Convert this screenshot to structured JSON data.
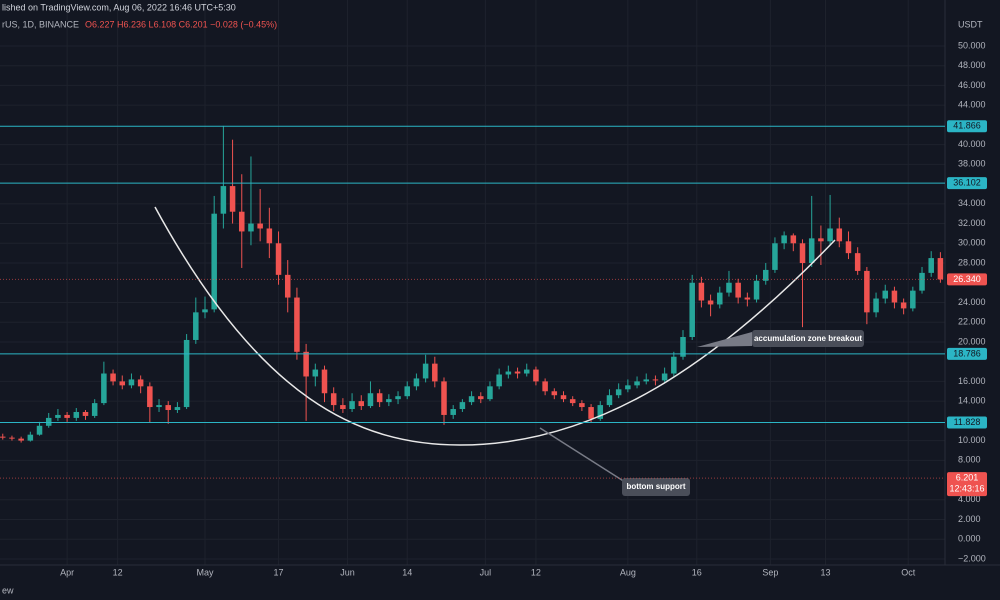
{
  "header": {
    "published": "lished on TradingView.com, Aug 06, 2022 16:46 UTC+5:30",
    "symbol": "rUS, 1D, BINANCE",
    "ohlc": "O6.227 H6.236 L6.108 C6.201 −0.028 (−0.45%)",
    "footer": "ew"
  },
  "chart_data": {
    "type": "candlestick",
    "currency": "USDT",
    "up_color": "#26a69a",
    "down_color": "#ef5350",
    "grid": true,
    "xlim": [
      -14.6,
      191
    ],
    "ylim": [
      -2.61,
      54.66
    ],
    "xticks": [
      {
        "value": 0,
        "label": "Apr"
      },
      {
        "value": 11,
        "label": "12"
      },
      {
        "value": 30,
        "label": "May"
      },
      {
        "value": 46,
        "label": "17"
      },
      {
        "value": 61,
        "label": "Jun"
      },
      {
        "value": 74,
        "label": "14"
      },
      {
        "value": 91,
        "label": "Jul"
      },
      {
        "value": 102,
        "label": "12"
      },
      {
        "value": 122,
        "label": "Aug"
      },
      {
        "value": 137,
        "label": "16"
      },
      {
        "value": 153,
        "label": "Sep"
      },
      {
        "value": 165,
        "label": "13"
      },
      {
        "value": 183,
        "label": "Oct"
      }
    ],
    "yticks": [
      {
        "value": 50,
        "label": "50.000"
      },
      {
        "value": 48,
        "label": "48.000"
      },
      {
        "value": 46,
        "label": "46.000"
      },
      {
        "value": 44,
        "label": "44.000"
      },
      {
        "value": 40,
        "label": "40.000"
      },
      {
        "value": 38,
        "label": "38.000"
      },
      {
        "value": 34,
        "label": "34.000"
      },
      {
        "value": 32,
        "label": "32.000"
      },
      {
        "value": 30,
        "label": "30.000"
      },
      {
        "value": 28,
        "label": "28.000"
      },
      {
        "value": 24,
        "label": "24.000"
      },
      {
        "value": 22,
        "label": "22.000"
      },
      {
        "value": 20,
        "label": "20.000"
      },
      {
        "value": 16,
        "label": "16.000"
      },
      {
        "value": 14,
        "label": "14.000"
      },
      {
        "value": 10,
        "label": "10.000"
      },
      {
        "value": 8,
        "label": "8.000"
      },
      {
        "value": 4,
        "label": "4.000"
      },
      {
        "value": 2,
        "label": "2.000"
      },
      {
        "value": 0,
        "label": "0.000"
      },
      {
        "value": -2,
        "label": "−2.000"
      }
    ],
    "levels": [
      {
        "value": 41.866,
        "label": "41.866"
      },
      {
        "value": 36.102,
        "label": "36.102"
      },
      {
        "value": 18.786,
        "label": "18.786"
      },
      {
        "value": 11.828,
        "label": "11.828"
      }
    ],
    "last_close": {
      "value": 26.34,
      "label": "26.340"
    },
    "last_price": {
      "value": 6.201,
      "label": "6.201",
      "countdown": "12:43:16"
    },
    "annotations": [
      "accumulation zone breakout",
      "bottom support"
    ],
    "x": [
      -14,
      -12,
      -10,
      -8,
      -6,
      -4,
      -2,
      0,
      2,
      4,
      6,
      8,
      10,
      12,
      14,
      16,
      18,
      20,
      22,
      24,
      26,
      28,
      30,
      32,
      34,
      36,
      38,
      40,
      42,
      44,
      46,
      48,
      50,
      52,
      54,
      56,
      58,
      60,
      62,
      64,
      66,
      68,
      70,
      72,
      74,
      76,
      78,
      80,
      82,
      84,
      86,
      88,
      90,
      92,
      94,
      96,
      98,
      100,
      102,
      104,
      106,
      108,
      110,
      112,
      114,
      116,
      118,
      120,
      122,
      124,
      126,
      128,
      130,
      132,
      134,
      136,
      138,
      140,
      142,
      144,
      146,
      148,
      150,
      152,
      154,
      156,
      158,
      160,
      162,
      164,
      166,
      168,
      170,
      172,
      174,
      176,
      178,
      180,
      182,
      184,
      186,
      188,
      190
    ],
    "ohlc": [
      [
        10.4,
        10.7,
        10.1,
        10.3
      ],
      [
        10.3,
        10.5,
        10.0,
        10.2
      ],
      [
        10.2,
        10.4,
        9.8,
        10.0
      ],
      [
        10.0,
        10.9,
        9.9,
        10.6
      ],
      [
        10.6,
        11.9,
        10.5,
        11.5
      ],
      [
        11.5,
        12.8,
        11.3,
        12.3
      ],
      [
        12.3,
        13.2,
        12.0,
        12.6
      ],
      [
        12.6,
        12.9,
        11.9,
        12.3
      ],
      [
        12.3,
        13.3,
        12.0,
        12.9
      ],
      [
        12.9,
        13.1,
        12.1,
        12.5
      ],
      [
        12.5,
        14.2,
        12.3,
        13.8
      ],
      [
        13.8,
        18.0,
        13.6,
        16.8
      ],
      [
        16.8,
        17.2,
        15.6,
        16.0
      ],
      [
        16.0,
        16.6,
        15.2,
        15.6
      ],
      [
        15.6,
        16.8,
        15.3,
        16.2
      ],
      [
        16.2,
        16.6,
        14.8,
        15.5
      ],
      [
        15.5,
        15.9,
        11.8,
        13.4
      ],
      [
        13.4,
        14.2,
        12.9,
        13.6
      ],
      [
        13.6,
        14.0,
        11.7,
        13.1
      ],
      [
        13.1,
        13.9,
        12.8,
        13.4
      ],
      [
        13.4,
        20.8,
        13.2,
        20.2
      ],
      [
        20.2,
        24.5,
        19.8,
        23.0
      ],
      [
        23.0,
        24.6,
        22.4,
        23.3
      ],
      [
        23.3,
        34.8,
        23.0,
        33.0
      ],
      [
        33.0,
        41.9,
        31.5,
        35.8
      ],
      [
        35.8,
        40.5,
        32.0,
        33.2
      ],
      [
        33.2,
        37.0,
        27.5,
        31.2
      ],
      [
        31.2,
        38.8,
        29.8,
        32.0
      ],
      [
        32.0,
        35.5,
        30.2,
        31.5
      ],
      [
        31.5,
        33.6,
        28.5,
        30.0
      ],
      [
        30.0,
        31.2,
        25.8,
        26.8
      ],
      [
        26.8,
        28.3,
        23.0,
        24.5
      ],
      [
        24.5,
        25.5,
        18.2,
        19.0
      ],
      [
        19.0,
        19.8,
        12.0,
        16.5
      ],
      [
        16.5,
        17.8,
        15.5,
        17.2
      ],
      [
        17.2,
        17.6,
        13.9,
        14.8
      ],
      [
        14.8,
        15.4,
        13.0,
        13.6
      ],
      [
        13.6,
        14.3,
        12.8,
        13.2
      ],
      [
        13.2,
        14.8,
        12.9,
        14.0
      ],
      [
        14.0,
        14.6,
        13.1,
        13.5
      ],
      [
        13.5,
        16.0,
        13.3,
        14.8
      ],
      [
        14.8,
        15.2,
        13.4,
        13.9
      ],
      [
        13.9,
        14.7,
        13.5,
        14.2
      ],
      [
        14.2,
        15.0,
        13.7,
        14.5
      ],
      [
        14.5,
        16.0,
        14.2,
        15.5
      ],
      [
        15.5,
        16.8,
        15.1,
        16.3
      ],
      [
        16.3,
        18.7,
        15.9,
        17.8
      ],
      [
        17.8,
        18.5,
        15.4,
        16.0
      ],
      [
        16.0,
        16.4,
        11.6,
        12.6
      ],
      [
        12.6,
        13.6,
        12.2,
        13.2
      ],
      [
        13.2,
        14.2,
        12.9,
        13.9
      ],
      [
        13.9,
        15.0,
        13.6,
        14.5
      ],
      [
        14.5,
        14.9,
        13.8,
        14.2
      ],
      [
        14.2,
        16.0,
        14.0,
        15.5
      ],
      [
        15.5,
        17.3,
        15.2,
        16.7
      ],
      [
        16.7,
        17.6,
        16.3,
        17.0
      ],
      [
        17.0,
        17.4,
        16.3,
        16.8
      ],
      [
        16.8,
        17.8,
        16.5,
        17.2
      ],
      [
        17.2,
        17.5,
        15.6,
        16.0
      ],
      [
        16.0,
        16.3,
        14.6,
        15.0
      ],
      [
        15.0,
        15.3,
        14.2,
        14.6
      ],
      [
        14.6,
        15.0,
        13.9,
        14.2
      ],
      [
        14.2,
        14.5,
        13.5,
        13.8
      ],
      [
        13.8,
        14.1,
        13.0,
        13.4
      ],
      [
        13.4,
        13.7,
        11.8,
        12.2
      ],
      [
        12.2,
        14.0,
        12.0,
        13.6
      ],
      [
        13.6,
        15.2,
        13.4,
        14.6
      ],
      [
        14.6,
        15.8,
        14.3,
        15.2
      ],
      [
        15.2,
        16.2,
        14.9,
        15.6
      ],
      [
        15.6,
        16.5,
        15.3,
        16.0
      ],
      [
        16.0,
        16.8,
        15.7,
        16.2
      ],
      [
        16.2,
        16.6,
        15.6,
        16.1
      ],
      [
        16.1,
        17.4,
        15.9,
        16.8
      ],
      [
        16.8,
        19.0,
        16.5,
        18.5
      ],
      [
        18.5,
        21.2,
        18.2,
        20.5
      ],
      [
        20.5,
        26.8,
        20.2,
        26.0
      ],
      [
        26.0,
        26.6,
        23.5,
        24.2
      ],
      [
        24.2,
        24.8,
        22.6,
        23.8
      ],
      [
        23.8,
        25.6,
        23.4,
        25.0
      ],
      [
        25.0,
        27.2,
        24.6,
        26.0
      ],
      [
        26.0,
        26.4,
        23.9,
        24.5
      ],
      [
        24.5,
        25.0,
        23.6,
        24.3
      ],
      [
        24.3,
        26.8,
        24.0,
        26.2
      ],
      [
        26.2,
        28.0,
        25.8,
        27.3
      ],
      [
        27.3,
        30.6,
        27.0,
        30.0
      ],
      [
        30.0,
        31.2,
        29.4,
        30.8
      ],
      [
        30.8,
        31.0,
        29.2,
        30.0
      ],
      [
        30.0,
        30.4,
        21.5,
        28.0
      ],
      [
        28.0,
        34.8,
        27.6,
        30.5
      ],
      [
        30.5,
        31.8,
        27.8,
        30.2
      ],
      [
        30.2,
        34.9,
        29.8,
        31.5
      ],
      [
        31.5,
        32.6,
        29.6,
        30.2
      ],
      [
        30.2,
        31.2,
        28.4,
        29.0
      ],
      [
        29.0,
        29.6,
        26.8,
        27.2
      ],
      [
        27.2,
        27.6,
        21.8,
        23.0
      ],
      [
        23.0,
        25.0,
        22.5,
        24.4
      ],
      [
        24.4,
        25.8,
        23.9,
        25.2
      ],
      [
        25.2,
        25.6,
        23.4,
        24.0
      ],
      [
        24.0,
        24.4,
        22.8,
        23.4
      ],
      [
        23.4,
        25.6,
        23.1,
        25.2
      ],
      [
        25.2,
        27.6,
        24.9,
        27.0
      ],
      [
        27.0,
        29.2,
        26.6,
        28.5
      ],
      [
        28.5,
        29.1,
        26.0,
        26.34
      ]
    ]
  }
}
